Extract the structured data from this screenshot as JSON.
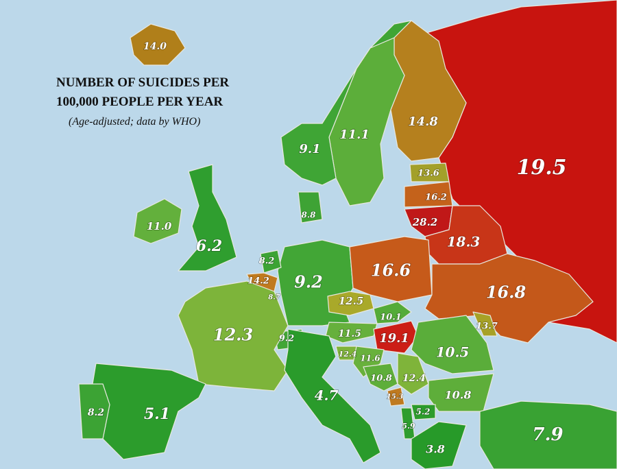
{
  "header": {
    "title": [
      "NUMBER OF SUICIDES PER",
      "100,000 PEOPLE PER YEAR"
    ],
    "subtitle": "(Age-adjusted; data by WHO)"
  },
  "regions": [
    {
      "label": "14.0",
      "color": "#b07f1a"
    },
    {
      "label": "9.1",
      "color": "#3fa535"
    },
    {
      "label": "11.1",
      "color": "#5cae3a"
    },
    {
      "label": "14.8",
      "color": "#b5801e"
    },
    {
      "label": "19.5",
      "color": "#c8140f"
    },
    {
      "label": "13.6",
      "color": "#a3a02a"
    },
    {
      "label": "16.2",
      "color": "#c4621b"
    },
    {
      "label": "28.2",
      "color": "#c01818"
    },
    {
      "label": "18.3",
      "color": "#c83518"
    },
    {
      "label": "11.0",
      "color": "#63b03c"
    },
    {
      "label": "6.2",
      "color": "#2f9e2f"
    },
    {
      "label": "8.8",
      "color": "#3ea335"
    },
    {
      "label": "8.2",
      "color": "#3ca334"
    },
    {
      "label": "14.2",
      "color": "#c07a1e"
    },
    {
      "label": "8.7",
      "color": "#3ea335"
    },
    {
      "label": "9.2",
      "color": "#42a636"
    },
    {
      "label": "16.6",
      "color": "#c65a1a"
    },
    {
      "label": "16.8",
      "color": "#c4581a"
    },
    {
      "label": "12.5",
      "color": "#a9a92a"
    },
    {
      "label": "12.3",
      "color": "#7db43a"
    },
    {
      "label": "10.1",
      "color": "#54ab38"
    },
    {
      "label": "9.2",
      "color": "#42a636"
    },
    {
      "label": "11.5",
      "color": "#66b03c"
    },
    {
      "label": "19.1",
      "color": "#cc1e16"
    },
    {
      "label": "13.7",
      "color": "#a7a126"
    },
    {
      "label": "10.5",
      "color": "#5aad3a"
    },
    {
      "label": "12.4",
      "color": "#7fb43a"
    },
    {
      "label": "11.6",
      "color": "#68b13c"
    },
    {
      "label": "10.8",
      "color": "#5eae3a"
    },
    {
      "label": "12.4",
      "color": "#7fb43a"
    },
    {
      "label": "15.3",
      "color": "#bf7a20"
    },
    {
      "label": "10.8",
      "color": "#5eae3a"
    },
    {
      "label": "5.2",
      "color": "#2c9c2c"
    },
    {
      "label": "5.9",
      "color": "#2e9d2e"
    },
    {
      "label": "3.8",
      "color": "#279a29"
    },
    {
      "label": "4.7",
      "color": "#2a9b2b"
    },
    {
      "label": "5.1",
      "color": "#2c9c2c"
    },
    {
      "label": "8.2",
      "color": "#3ca334"
    },
    {
      "label": "7.9",
      "color": "#39a233"
    }
  ]
}
